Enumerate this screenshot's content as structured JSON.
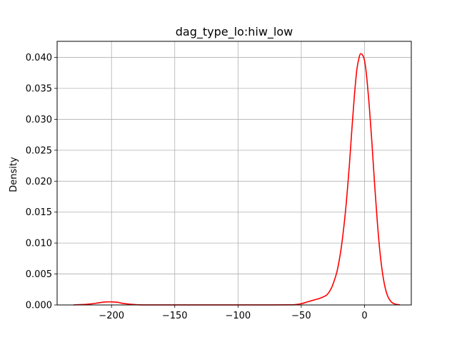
{
  "chart_data": {
    "type": "line",
    "title": "dag_type_lo:hiw_low",
    "xlabel": "",
    "ylabel": "Density",
    "xlim": [
      -243,
      37
    ],
    "ylim": [
      0,
      0.0426
    ],
    "grid": true,
    "legend": "none",
    "xticks": [
      -200,
      -150,
      -100,
      -50,
      0
    ],
    "xtick_labels": [
      "−200",
      "−150",
      "−100",
      "−50",
      "0"
    ],
    "yticks": [
      0,
      0.005,
      0.01,
      0.015,
      0.02,
      0.025,
      0.03,
      0.035,
      0.04
    ],
    "ytick_labels": [
      "0.000",
      "0.005",
      "0.010",
      "0.015",
      "0.020",
      "0.025",
      "0.030",
      "0.035",
      "0.040"
    ],
    "series": [
      {
        "color": "#ff0000",
        "x": [
          -230,
          -220,
          -215,
          -210,
          -205,
          -200,
          -195,
          -190,
          -180,
          -170,
          -150,
          -120,
          -100,
          -80,
          -60,
          -55,
          -50,
          -45,
          -40,
          -35,
          -30,
          -27,
          -25,
          -22,
          -20,
          -18,
          -15,
          -12,
          -10,
          -8,
          -6,
          -4,
          -3,
          -2,
          -1,
          0,
          1,
          2,
          3,
          4,
          6,
          8,
          10,
          12,
          14,
          16,
          18,
          20,
          22,
          25,
          28
        ],
        "y": [
          1e-05,
          0.0001,
          0.0002,
          0.00035,
          0.00048,
          0.0005,
          0.00042,
          0.00022,
          4e-05,
          1e-05,
          5e-06,
          5e-06,
          1e-05,
          1e-05,
          2e-05,
          5e-05,
          0.0002,
          0.0005,
          0.0008,
          0.0011,
          0.0016,
          0.0024,
          0.0033,
          0.0052,
          0.0072,
          0.0098,
          0.0152,
          0.0225,
          0.0283,
          0.0338,
          0.0381,
          0.0402,
          0.0406,
          0.0405,
          0.0402,
          0.0395,
          0.0382,
          0.0363,
          0.034,
          0.0315,
          0.0258,
          0.0195,
          0.0138,
          0.009,
          0.0055,
          0.0031,
          0.0016,
          0.0008,
          0.00035,
          0.0001,
          2e-05
        ]
      }
    ]
  }
}
